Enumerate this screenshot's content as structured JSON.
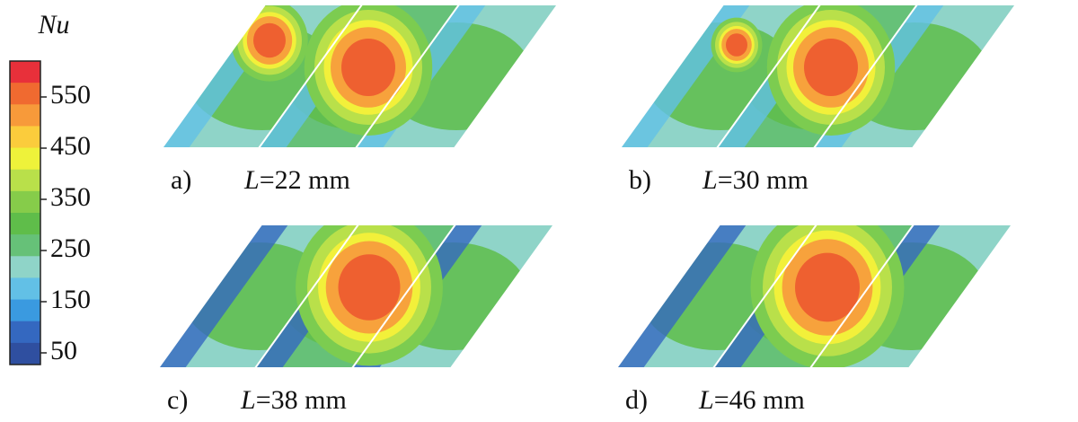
{
  "legend": {
    "title": "Nu",
    "ticks": [
      "550",
      "450",
      "350",
      "250",
      "150",
      "50"
    ]
  },
  "panels": [
    {
      "label": "a)",
      "variable": "L",
      "value": "=22 mm"
    },
    {
      "label": "b)",
      "variable": "L",
      "value": "=30 mm"
    },
    {
      "label": "c)",
      "variable": "L",
      "value": "=38 mm"
    },
    {
      "label": "d)",
      "variable": "L",
      "value": "=46 mm"
    }
  ]
}
